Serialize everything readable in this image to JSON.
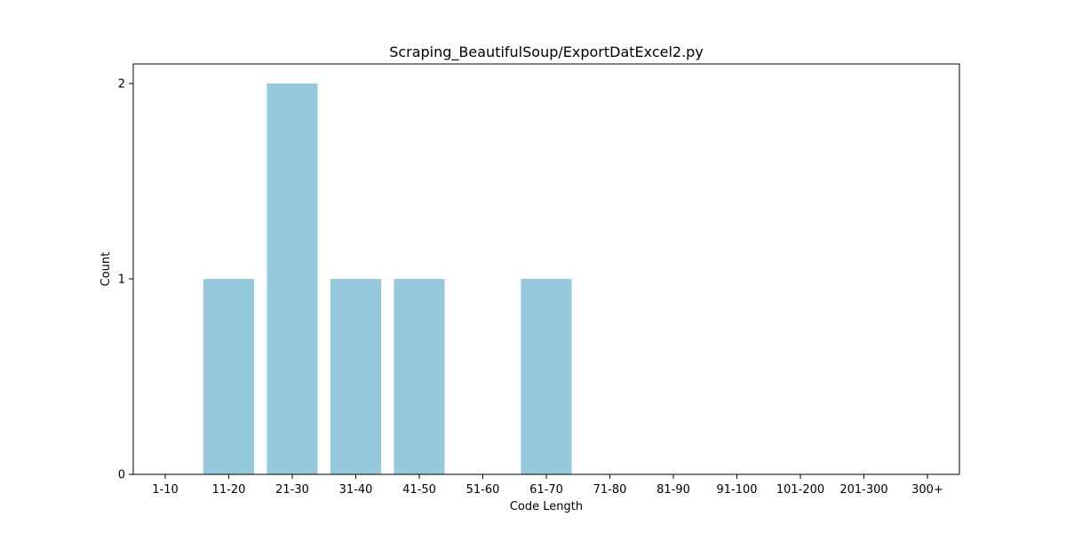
{
  "chart_data": {
    "type": "bar",
    "title": "Scraping_BeautifulSoup/ExportDatExcel2.py",
    "xlabel": "Code Length",
    "ylabel": "Count",
    "categories": [
      "1-10",
      "11-20",
      "21-30",
      "31-40",
      "41-50",
      "51-60",
      "61-70",
      "71-80",
      "81-90",
      "91-100",
      "101-200",
      "201-300",
      "300+"
    ],
    "values": [
      0,
      1,
      2,
      1,
      1,
      0,
      1,
      0,
      0,
      0,
      0,
      0,
      0
    ],
    "ylim": [
      0,
      2.1
    ],
    "yticks": [
      0,
      1,
      2
    ],
    "bar_color": "#96c9dc",
    "grid": false,
    "legend": "none"
  }
}
